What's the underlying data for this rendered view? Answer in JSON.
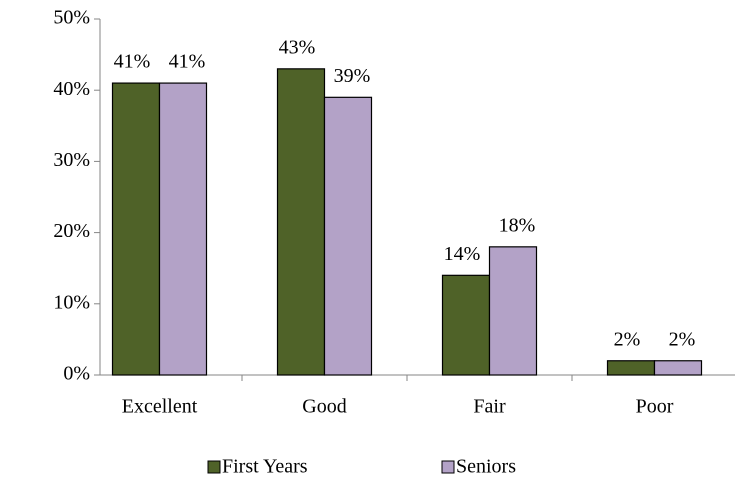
{
  "chart_data": {
    "type": "bar",
    "categories": [
      "Excellent",
      "Good",
      "Fair",
      "Poor"
    ],
    "series": [
      {
        "name": "First Years",
        "color": "#4f6228",
        "values": [
          41,
          43,
          14,
          2
        ],
        "value_labels": [
          "41%",
          "43%",
          "14%",
          "2%"
        ]
      },
      {
        "name": "Seniors",
        "color": "#b3a2c7",
        "values": [
          41,
          39,
          18,
          2
        ],
        "value_labels": [
          "41%",
          "39%",
          "18%",
          "2%"
        ]
      }
    ],
    "ylim": [
      0,
      50
    ],
    "yticks": [
      {
        "value": 0,
        "label": "0%"
      },
      {
        "value": 10,
        "label": "10%"
      },
      {
        "value": 20,
        "label": "20%"
      },
      {
        "value": 30,
        "label": "30%"
      },
      {
        "value": 40,
        "label": "40%"
      },
      {
        "value": 50,
        "label": "50%"
      }
    ],
    "legend": "bottom"
  }
}
